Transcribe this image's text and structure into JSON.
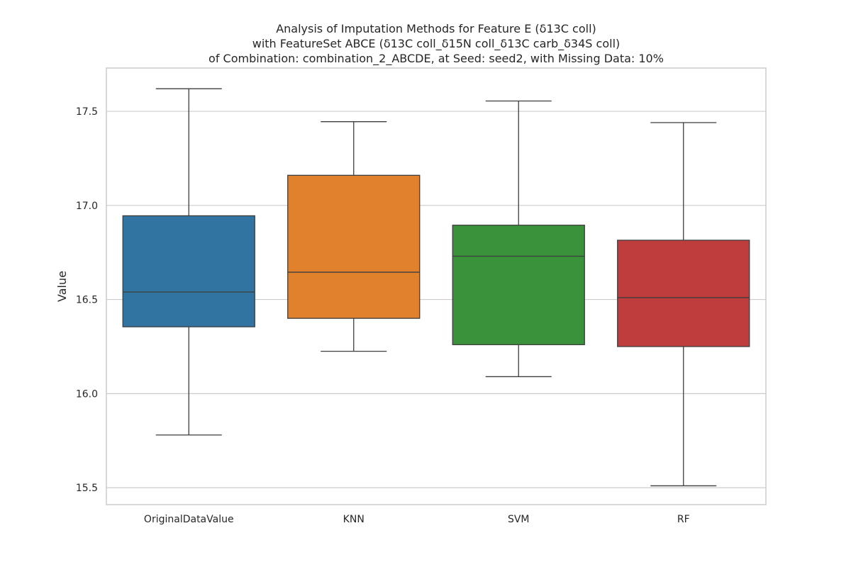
{
  "chart_data": {
    "type": "box",
    "title_lines": [
      "Analysis of Imputation Methods for Feature E (δ13C coll)",
      "with FeatureSet ABCE (δ13C coll_δ15N coll_δ13C carb_δ34S coll)",
      "of Combination: combination_2_ABCDE, at Seed: seed2, with Missing Data: 10%"
    ],
    "xlabel": "",
    "ylabel": "Value",
    "ylim": [
      15.41,
      17.73
    ],
    "yticks": [
      "15.5",
      "16.0",
      "16.5",
      "17.0",
      "17.5"
    ],
    "ytick_values": [
      15.5,
      16.0,
      16.5,
      17.0,
      17.5
    ],
    "grid": true,
    "categories": [
      "OriginalDataValue",
      "KNN",
      "SVM",
      "RF"
    ],
    "boxes": [
      {
        "category": "OriginalDataValue",
        "whisker_low": 15.78,
        "q1": 16.355,
        "median": 16.54,
        "q3": 16.945,
        "whisker_high": 17.62,
        "color": "#3274a1"
      },
      {
        "category": "KNN",
        "whisker_low": 16.225,
        "q1": 16.4,
        "median": 16.645,
        "q3": 17.16,
        "whisker_high": 17.445,
        "color": "#e1812c"
      },
      {
        "category": "SVM",
        "whisker_low": 16.09,
        "q1": 16.26,
        "median": 16.73,
        "q3": 16.895,
        "whisker_high": 17.555,
        "color": "#3a923a"
      },
      {
        "category": "RF",
        "whisker_low": 15.51,
        "q1": 16.25,
        "median": 16.51,
        "q3": 16.815,
        "whisker_high": 17.44,
        "color": "#c03d3e"
      }
    ]
  }
}
